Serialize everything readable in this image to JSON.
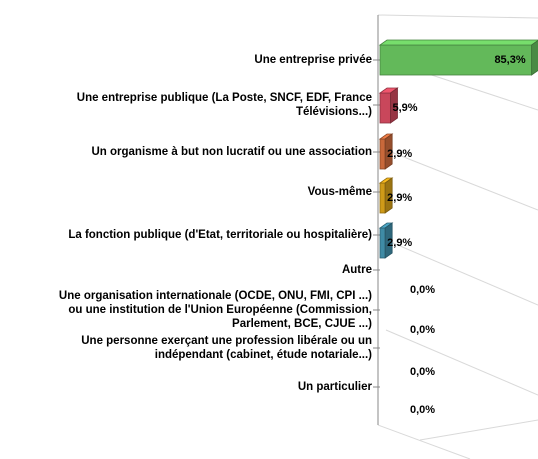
{
  "chart_data": {
    "type": "bar",
    "orientation": "horizontal",
    "categories": [
      "Une entreprise privée",
      "Une entreprise publique (La Poste, SNCF, EDF, France\nTélévisions...)",
      "Un organisme à but non lucratif ou une association",
      "Vous-même",
      "La fonction publique (d'Etat, territoriale ou hospitalière)",
      "Autre",
      "Une organisation internationale (OCDE, ONU, FMI, CPI ...)\nou une institution de l'Union Européenne (Commission,\nParlement, BCE, CJUE ...)",
      "Une personne exerçant une profession libérale ou un\nindépendant (cabinet, étude notariale...)",
      "Un particulier"
    ],
    "values": [
      85.3,
      5.9,
      2.9,
      2.9,
      2.9,
      0,
      0,
      0,
      0
    ],
    "value_labels": [
      "85,3%",
      "5,9%",
      "2,9%",
      "2,9%",
      "2,9%",
      "0,0%",
      "0,0%",
      "0,0%",
      "0,0%"
    ],
    "colors": [
      "#63b95a",
      "#c9475b",
      "#c8683a",
      "#cf9a18",
      "#3f8ba5",
      "#888888",
      "#888888",
      "#888888",
      "#888888"
    ],
    "xlim": [
      0,
      90
    ]
  }
}
